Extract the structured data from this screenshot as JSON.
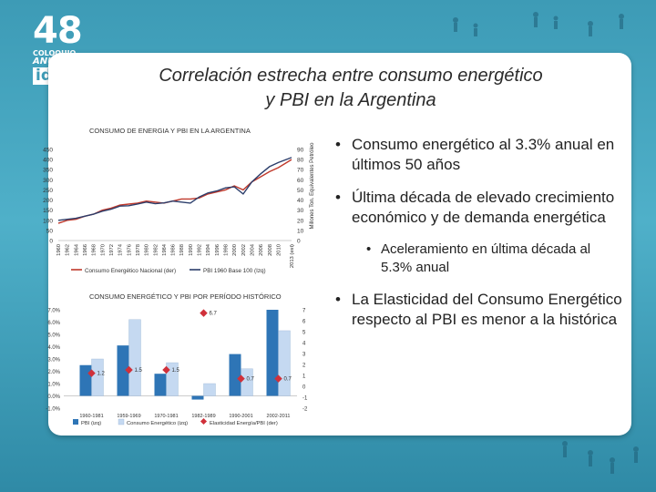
{
  "logo": {
    "number": "48",
    "line1": "COLOQUIO",
    "line2": "ANUAL",
    "line3": "idea"
  },
  "slide": {
    "title_line1": "Correlación estrecha entre consumo energético",
    "title_line2": "y PBI en la Argentina"
  },
  "bullets": [
    {
      "text": "Consumo energético al 3.3% anual en últimos 50 años",
      "level": 1
    },
    {
      "text": "Última década de elevado crecimiento económico y de demanda energética",
      "level": 1
    },
    {
      "text": "Aceleramiento en última década al 5.3% anual",
      "level": 2
    },
    {
      "text": "La Elasticidad del Consumo Energético respecto al PBI es menor a la histórica",
      "level": 1
    }
  ],
  "colors": {
    "consumo": "#c0392b",
    "pbi": "#2c3e6b",
    "bar_pbi": "#2e75b6",
    "bar_consumo": "#c5d9f1",
    "elasticidad": "#d0303a"
  },
  "chart_data": [
    {
      "type": "line",
      "title": "CONSUMO DE ENERGIA Y PBI EN LA ARGENTINA",
      "ylabel": "",
      "y2label": "Millones Ton. Equivalentes Petróleo",
      "ylim": [
        0,
        450
      ],
      "y2lim": [
        0,
        90
      ],
      "yticks": [
        0,
        50,
        100,
        150,
        200,
        250,
        300,
        350,
        400,
        450
      ],
      "y2ticks": [
        0,
        10,
        20,
        30,
        40,
        50,
        60,
        70,
        80,
        90
      ],
      "xticks": [
        "1960",
        "1962",
        "1964",
        "1966",
        "1968",
        "1970",
        "1972",
        "1974",
        "1976",
        "1978",
        "1980",
        "1982",
        "1984",
        "1986",
        "1988",
        "1990",
        "1992",
        "1994",
        "1996",
        "1998",
        "2000",
        "2002",
        "2004",
        "2006",
        "2008",
        "2010",
        "2013 (est)"
      ],
      "x": [
        1960,
        1962,
        1964,
        1966,
        1968,
        1970,
        1972,
        1974,
        1976,
        1978,
        1980,
        1982,
        1984,
        1986,
        1988,
        1990,
        1992,
        1994,
        1996,
        1998,
        2000,
        2002,
        2004,
        2006,
        2008,
        2010,
        2013
      ],
      "series": [
        {
          "name": "Consumo Energético Nacional (der)",
          "axis": "right",
          "values": [
            17,
            20,
            21,
            24,
            26,
            30,
            32,
            35,
            36,
            37,
            39,
            38,
            37,
            39,
            41,
            41,
            42,
            46,
            48,
            50,
            54,
            50,
            58,
            63,
            68,
            72,
            80
          ]
        },
        {
          "name": "PBI 1960 Base 100 (Izq)",
          "axis": "left",
          "values": [
            100,
            105,
            110,
            120,
            130,
            145,
            155,
            170,
            172,
            180,
            190,
            182,
            186,
            195,
            190,
            185,
            215,
            235,
            245,
            260,
            265,
            230,
            290,
            330,
            365,
            385,
            410
          ]
        }
      ],
      "legend": "bottom"
    },
    {
      "type": "bar",
      "title": "CONSUMO ENERGÉTICO Y PBI POR PERÍODO HISTÓRICO",
      "categories": [
        "1960-1981",
        "1959-1969",
        "1970-1981",
        "1982-1989",
        "1990-2001",
        "2002-2011"
      ],
      "ylim": [
        -1.0,
        7.0
      ],
      "y2lim": [
        -2,
        7
      ],
      "yticks": [
        "-1.0%",
        "0.0%",
        "1.0%",
        "2.0%",
        "3.0%",
        "4.0%",
        "5.0%",
        "6.0%",
        "7.0%"
      ],
      "y2ticks": [
        "-2",
        "-1",
        "0",
        "1",
        "2",
        "3",
        "4",
        "5",
        "6",
        "7"
      ],
      "series": [
        {
          "name": "PBI (izq)",
          "axis": "left",
          "values": [
            2.5,
            4.1,
            1.8,
            -0.3,
            3.4,
            7.0
          ]
        },
        {
          "name": "Consumo Energético (izq)",
          "axis": "left",
          "values": [
            3.0,
            6.2,
            2.7,
            1.0,
            2.2,
            5.3
          ]
        },
        {
          "name": "Elasticidad Energía/PBI (der)",
          "axis": "right",
          "values": [
            1.2,
            1.5,
            1.5,
            6.7,
            0.7,
            0.7
          ],
          "labels": [
            "1.2",
            "1.5",
            "1.5",
            "6.7",
            "0.7",
            "0.7"
          ]
        }
      ],
      "legend": "bottom"
    }
  ]
}
